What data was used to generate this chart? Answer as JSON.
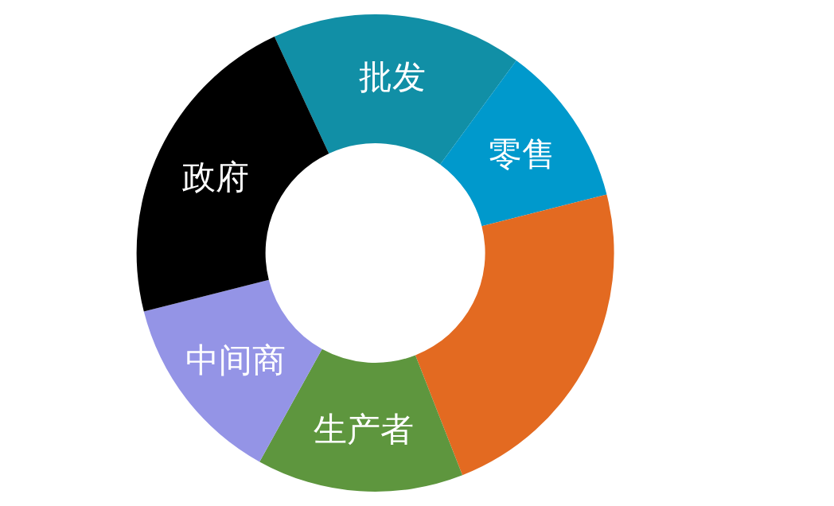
{
  "chart_data": {
    "type": "donut",
    "categories": [
      "批发",
      "零售",
      null,
      "生产者",
      "中间商",
      "政府"
    ],
    "values": [
      17,
      11,
      23,
      14,
      13,
      22
    ],
    "colors": [
      "#118fa6",
      "#0099cc",
      "#e36a21",
      "#5e963e",
      "#9494e6",
      "#000000"
    ]
  }
}
